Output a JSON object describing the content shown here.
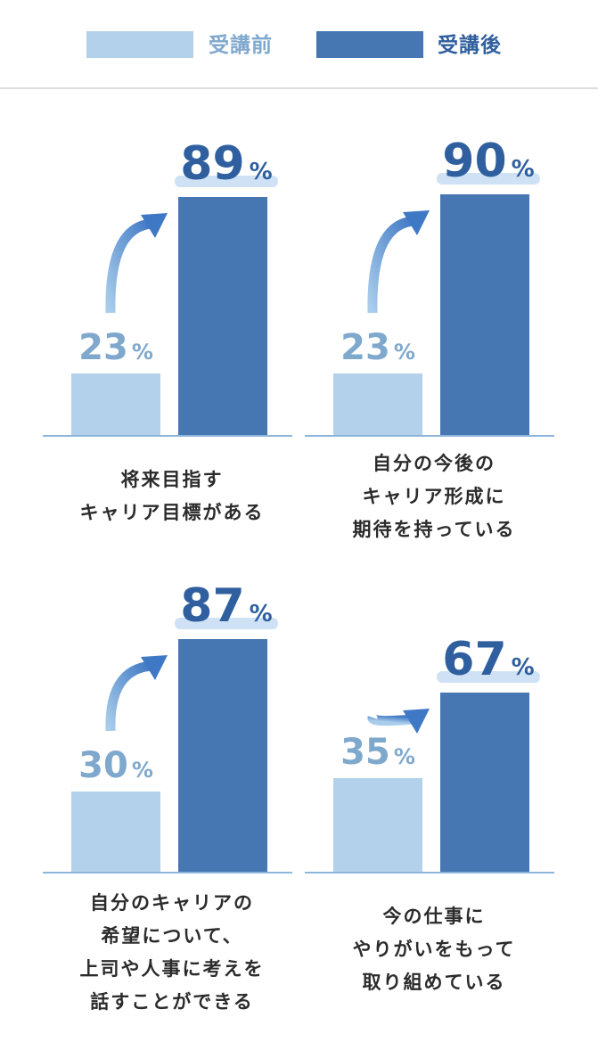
{
  "legend": {
    "before": {
      "label": "受講前",
      "color": "#b3d1ea",
      "text_color": "#7fa8cd"
    },
    "after": {
      "label": "受講後",
      "color": "#4677b3",
      "text_color": "#2f5f9e"
    }
  },
  "colors": {
    "axis": "#8eb5dc",
    "highlight": "#cfe2f5",
    "arrow_light": "#a9cdeb",
    "arrow_dark": "#3f78c4"
  },
  "percent_sign": "%",
  "chart_data": [
    {
      "type": "bar",
      "categories": [
        "受講前",
        "受講後"
      ],
      "values": [
        23,
        89
      ],
      "ylim": [
        0,
        100
      ],
      "caption": [
        "将来目指す",
        "キャリア目標がある"
      ]
    },
    {
      "type": "bar",
      "categories": [
        "受講前",
        "受講後"
      ],
      "values": [
        23,
        90
      ],
      "ylim": [
        0,
        100
      ],
      "caption": [
        "自分の今後の",
        "キャリア形成に",
        "期待を持っている"
      ]
    },
    {
      "type": "bar",
      "categories": [
        "受講前",
        "受講後"
      ],
      "values": [
        30,
        87
      ],
      "ylim": [
        0,
        100
      ],
      "caption": [
        "自分のキャリアの",
        "希望について、",
        "上司や人事に考えを",
        "話すことができる"
      ]
    },
    {
      "type": "bar",
      "categories": [
        "受講前",
        "受講後"
      ],
      "values": [
        35,
        67
      ],
      "ylim": [
        0,
        100
      ],
      "caption": [
        "今の仕事に",
        "やりがいをもって",
        "取り組めている"
      ]
    }
  ]
}
